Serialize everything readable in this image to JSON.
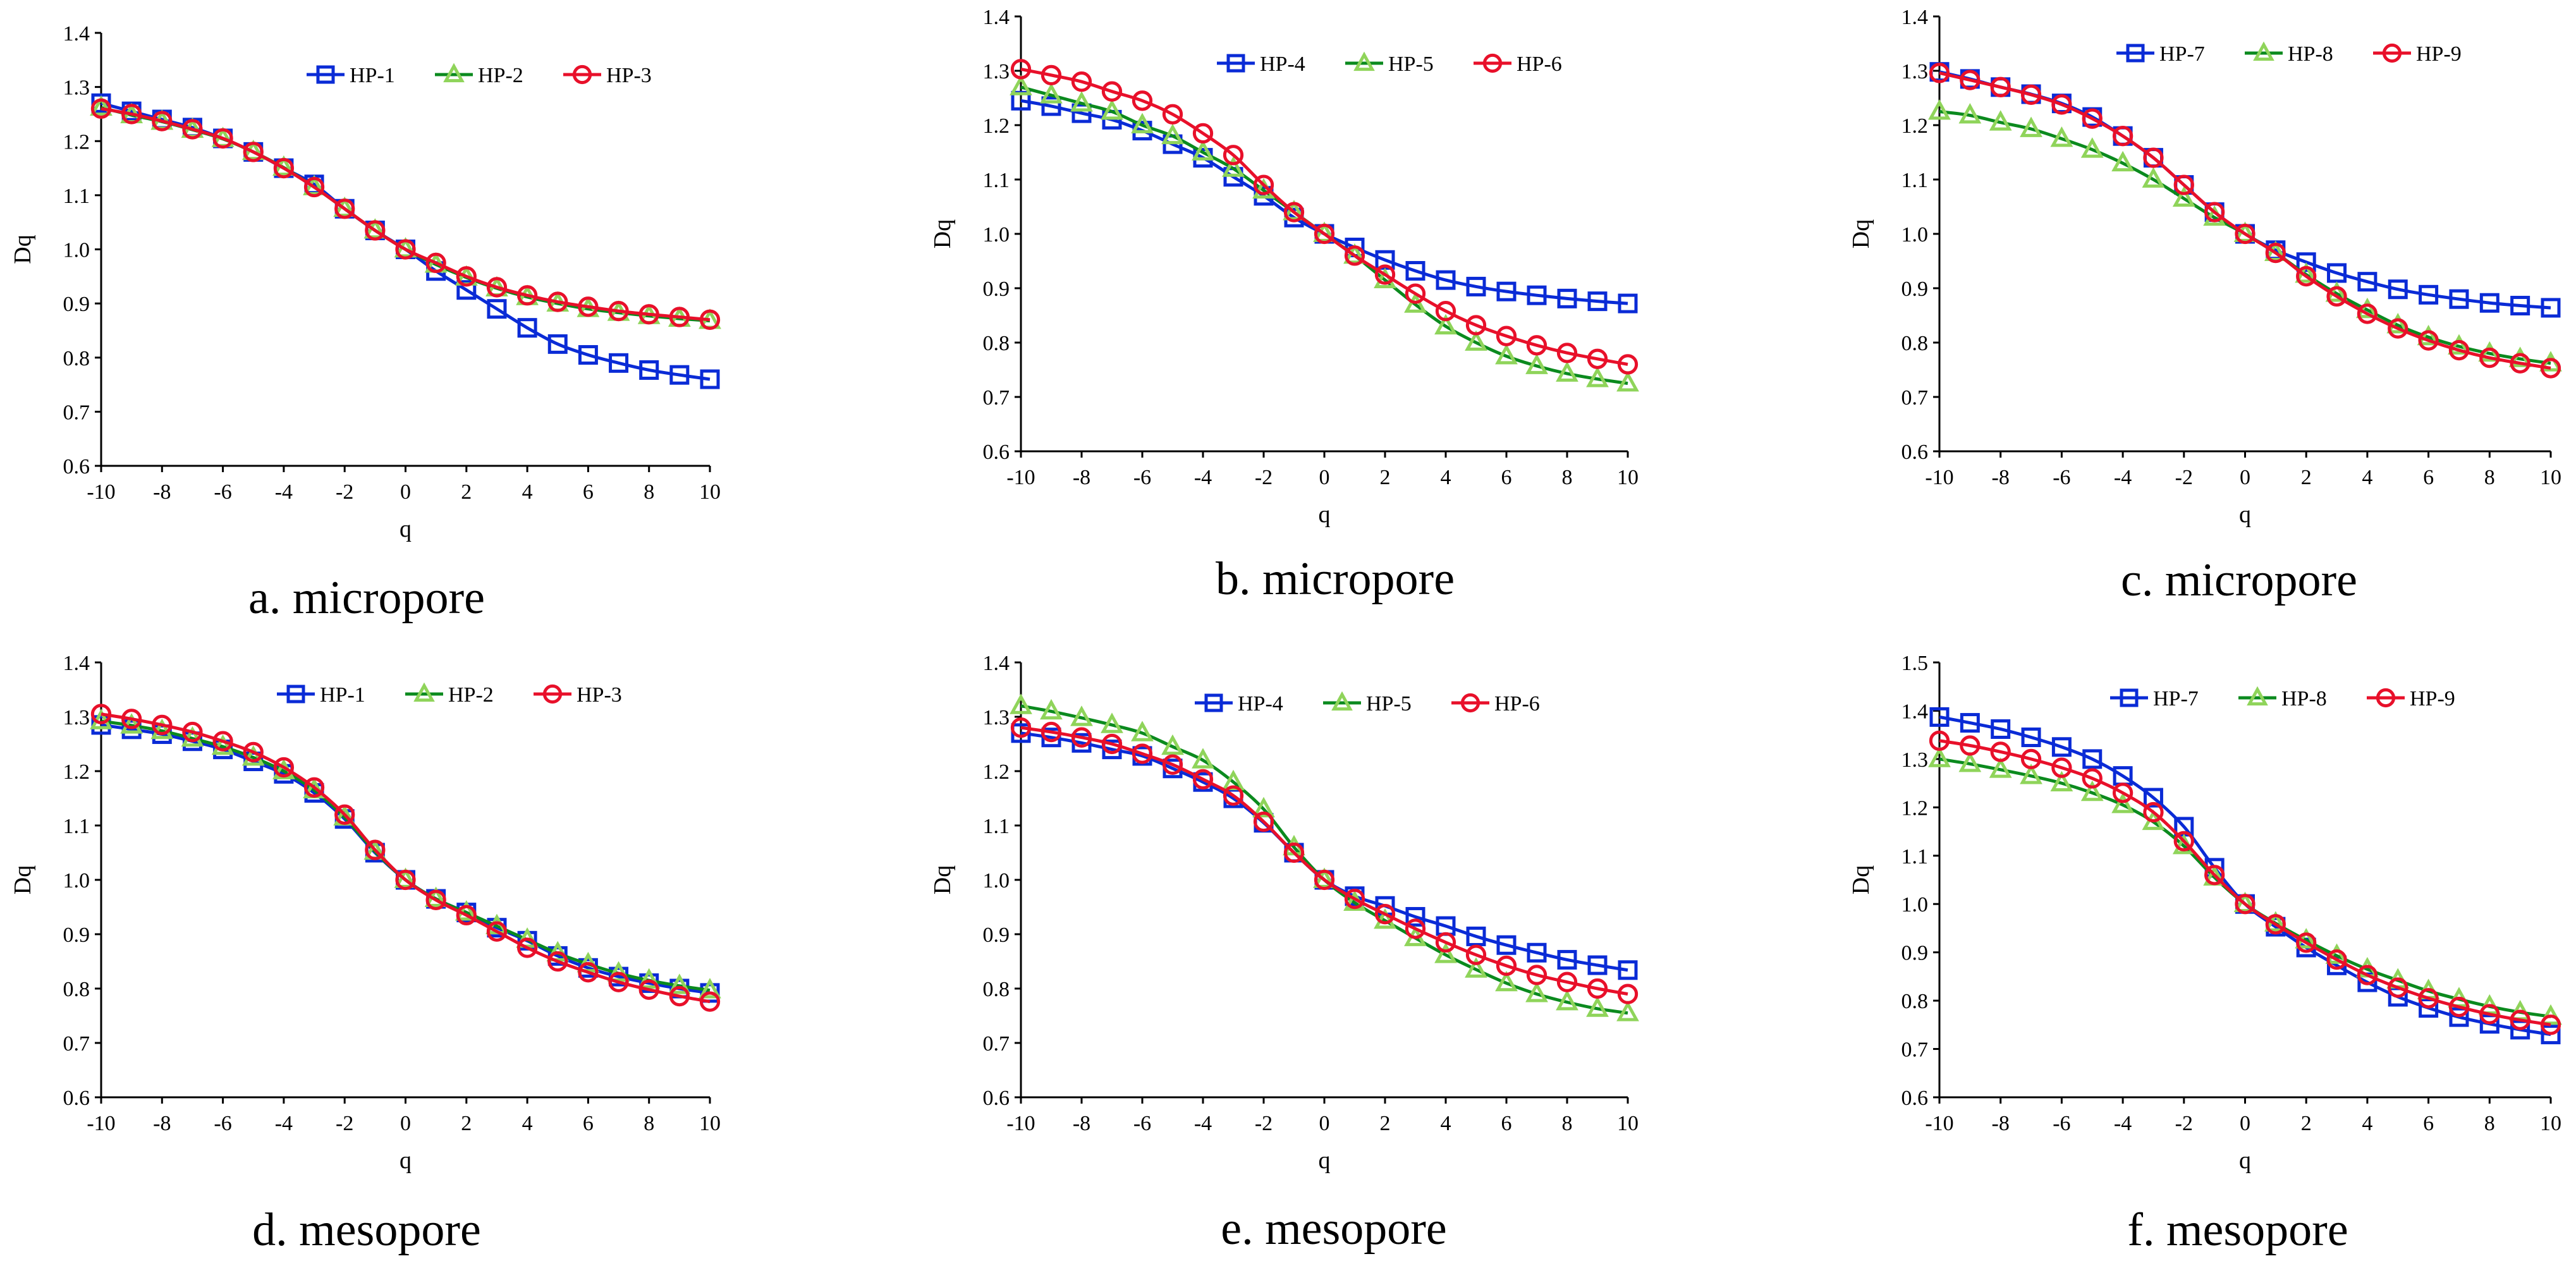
{
  "figure": {
    "series_styles": {
      "blue": {
        "color": "#0a2bd6",
        "marker": "square"
      },
      "green": {
        "color": "#0b8a1e",
        "marker_color": "#8fd45a",
        "marker": "triangle"
      },
      "red": {
        "color": "#e8102a",
        "marker_color": "#e8102a",
        "marker": "circle"
      }
    }
  },
  "chart_data": [
    {
      "type": "line",
      "caption": "a. micropore",
      "xlabel": "q",
      "ylabel": "Dq",
      "xlim": [
        -10,
        10
      ],
      "ylim": [
        0.6,
        1.4
      ],
      "xticks": [
        "-10",
        "-8",
        "-6",
        "-4",
        "-2",
        "0",
        "2",
        "4",
        "6",
        "8",
        "10"
      ],
      "yticks": [
        "0.6",
        "0.7",
        "0.8",
        "0.9",
        "1.0",
        "1.1",
        "1.2",
        "1.3",
        "1.4"
      ],
      "legend_position": "top-right",
      "x": [
        -10,
        -9,
        -8,
        -7,
        -6,
        -5,
        -4,
        -3,
        -2,
        -1,
        0,
        1,
        2,
        3,
        4,
        5,
        6,
        7,
        8,
        9,
        10
      ],
      "series": [
        {
          "name": "HP-1",
          "style": "blue",
          "values": [
            1.27,
            1.255,
            1.24,
            1.225,
            1.205,
            1.18,
            1.15,
            1.12,
            1.075,
            1.035,
            1.0,
            0.96,
            0.925,
            0.89,
            0.855,
            0.825,
            0.805,
            0.79,
            0.777,
            0.768,
            0.76
          ]
        },
        {
          "name": "HP-2",
          "style": "green",
          "values": [
            1.262,
            1.248,
            1.236,
            1.221,
            1.204,
            1.18,
            1.151,
            1.115,
            1.075,
            1.035,
            1.0,
            0.972,
            0.948,
            0.928,
            0.912,
            0.9,
            0.89,
            0.883,
            0.877,
            0.872,
            0.868
          ]
        },
        {
          "name": "HP-3",
          "style": "red",
          "values": [
            1.26,
            1.25,
            1.237,
            1.222,
            1.205,
            1.18,
            1.15,
            1.115,
            1.075,
            1.035,
            1.0,
            0.975,
            0.95,
            0.93,
            0.915,
            0.903,
            0.894,
            0.886,
            0.88,
            0.875,
            0.87
          ]
        }
      ]
    },
    {
      "type": "line",
      "caption": "b. micropore",
      "xlabel": "q",
      "ylabel": "Dq",
      "xlim": [
        -10,
        10
      ],
      "ylim": [
        0.6,
        1.4
      ],
      "xticks": [
        "-10",
        "-8",
        "-6",
        "-4",
        "-2",
        "0",
        "2",
        "4",
        "6",
        "8",
        "10"
      ],
      "yticks": [
        "0.6",
        "0.7",
        "0.8",
        "0.9",
        "1.0",
        "1.1",
        "1.2",
        "1.3",
        "1.4"
      ],
      "legend_position": "top-right",
      "x": [
        -10,
        -9,
        -8,
        -7,
        -6,
        -5,
        -4,
        -3,
        -2,
        -1,
        0,
        1,
        2,
        3,
        4,
        5,
        6,
        7,
        8,
        9,
        10
      ],
      "series": [
        {
          "name": "HP-4",
          "style": "blue",
          "values": [
            1.245,
            1.235,
            1.222,
            1.21,
            1.19,
            1.165,
            1.14,
            1.105,
            1.07,
            1.03,
            1.0,
            0.975,
            0.952,
            0.932,
            0.915,
            0.903,
            0.894,
            0.887,
            0.881,
            0.876,
            0.872
          ]
        },
        {
          "name": "HP-5",
          "style": "green",
          "values": [
            1.27,
            1.255,
            1.24,
            1.225,
            1.2,
            1.18,
            1.15,
            1.12,
            1.08,
            1.04,
            1.0,
            0.96,
            0.915,
            0.87,
            0.83,
            0.8,
            0.775,
            0.757,
            0.743,
            0.733,
            0.725
          ]
        },
        {
          "name": "HP-6",
          "style": "red",
          "values": [
            1.303,
            1.292,
            1.28,
            1.262,
            1.245,
            1.22,
            1.185,
            1.145,
            1.09,
            1.04,
            1.0,
            0.96,
            0.925,
            0.89,
            0.858,
            0.832,
            0.812,
            0.795,
            0.781,
            0.77,
            0.76
          ]
        }
      ]
    },
    {
      "type": "line",
      "caption": "c. micropore",
      "xlabel": "q",
      "ylabel": "Dq",
      "xlim": [
        -10,
        10
      ],
      "ylim": [
        0.6,
        1.4
      ],
      "xticks": [
        "-10",
        "-8",
        "-6",
        "-4",
        "-2",
        "0",
        "2",
        "4",
        "6",
        "8",
        "10"
      ],
      "yticks": [
        "0.6",
        "0.7",
        "0.8",
        "0.9",
        "1.0",
        "1.1",
        "1.2",
        "1.3",
        "1.4"
      ],
      "legend_position": "top-right",
      "x": [
        -10,
        -9,
        -8,
        -7,
        -6,
        -5,
        -4,
        -3,
        -2,
        -1,
        0,
        1,
        2,
        3,
        4,
        5,
        6,
        7,
        8,
        9,
        10
      ],
      "series": [
        {
          "name": "HP-7",
          "style": "blue",
          "values": [
            1.298,
            1.285,
            1.27,
            1.257,
            1.24,
            1.215,
            1.18,
            1.14,
            1.09,
            1.04,
            1.0,
            0.97,
            0.948,
            0.928,
            0.912,
            0.898,
            0.888,
            0.88,
            0.873,
            0.868,
            0.864
          ]
        },
        {
          "name": "HP-8",
          "style": "green",
          "values": [
            1.225,
            1.218,
            1.205,
            1.193,
            1.175,
            1.155,
            1.13,
            1.1,
            1.065,
            1.03,
            1.0,
            0.965,
            0.925,
            0.89,
            0.86,
            0.832,
            0.81,
            0.793,
            0.78,
            0.77,
            0.762
          ]
        },
        {
          "name": "HP-9",
          "style": "red",
          "values": [
            1.296,
            1.283,
            1.27,
            1.256,
            1.238,
            1.212,
            1.18,
            1.14,
            1.09,
            1.04,
            1.0,
            0.965,
            0.922,
            0.885,
            0.853,
            0.826,
            0.804,
            0.786,
            0.772,
            0.762,
            0.753
          ]
        }
      ]
    },
    {
      "type": "line",
      "caption": "d. mesopore",
      "xlabel": "q",
      "ylabel": "Dq",
      "xlim": [
        -10,
        10
      ],
      "ylim": [
        0.6,
        1.4
      ],
      "xticks": [
        "-10",
        "-8",
        "-6",
        "-4",
        "-2",
        "0",
        "2",
        "4",
        "6",
        "8",
        "10"
      ],
      "yticks": [
        "0.6",
        "0.7",
        "0.8",
        "0.9",
        "1.0",
        "1.1",
        "1.2",
        "1.3",
        "1.4"
      ],
      "legend_position": "top-right",
      "x": [
        -10,
        -9,
        -8,
        -7,
        -6,
        -5,
        -4,
        -3,
        -2,
        -1,
        0,
        1,
        2,
        3,
        4,
        5,
        6,
        7,
        8,
        9,
        10
      ],
      "series": [
        {
          "name": "HP-1",
          "style": "blue",
          "values": [
            1.285,
            1.277,
            1.268,
            1.255,
            1.24,
            1.218,
            1.195,
            1.16,
            1.112,
            1.05,
            1.0,
            0.965,
            0.94,
            0.912,
            0.888,
            0.86,
            0.838,
            0.822,
            0.81,
            0.8,
            0.792
          ]
        },
        {
          "name": "HP-2",
          "style": "green",
          "values": [
            1.292,
            1.284,
            1.274,
            1.26,
            1.245,
            1.225,
            1.2,
            1.165,
            1.115,
            1.052,
            1.0,
            0.965,
            0.94,
            0.915,
            0.89,
            0.865,
            0.845,
            0.828,
            0.815,
            0.805,
            0.797
          ]
        },
        {
          "name": "HP-3",
          "style": "red",
          "values": [
            1.305,
            1.296,
            1.285,
            1.272,
            1.255,
            1.235,
            1.207,
            1.17,
            1.12,
            1.055,
            1.0,
            0.963,
            0.935,
            0.905,
            0.875,
            0.85,
            0.83,
            0.812,
            0.798,
            0.786,
            0.776
          ]
        }
      ]
    },
    {
      "type": "line",
      "caption": "e. mesopore",
      "xlabel": "q",
      "ylabel": "Dq",
      "xlim": [
        -10,
        10
      ],
      "ylim": [
        0.6,
        1.4
      ],
      "xticks": [
        "-10",
        "-8",
        "-6",
        "-4",
        "-2",
        "0",
        "2",
        "4",
        "6",
        "8",
        "10"
      ],
      "yticks": [
        "0.6",
        "0.7",
        "0.8",
        "0.9",
        "1.0",
        "1.1",
        "1.2",
        "1.3",
        "1.4"
      ],
      "legend_position": "top-right",
      "x": [
        -10,
        -9,
        -8,
        -7,
        -6,
        -5,
        -4,
        -3,
        -2,
        -1,
        0,
        1,
        2,
        3,
        4,
        5,
        6,
        7,
        8,
        9,
        10
      ],
      "series": [
        {
          "name": "HP-4",
          "style": "blue",
          "values": [
            1.27,
            1.262,
            1.252,
            1.24,
            1.228,
            1.205,
            1.18,
            1.15,
            1.105,
            1.05,
            1.0,
            0.97,
            0.952,
            0.932,
            0.915,
            0.896,
            0.88,
            0.866,
            0.853,
            0.843,
            0.834
          ]
        },
        {
          "name": "HP-5",
          "style": "green",
          "values": [
            1.32,
            1.31,
            1.298,
            1.285,
            1.27,
            1.245,
            1.22,
            1.18,
            1.13,
            1.06,
            1.0,
            0.958,
            0.925,
            0.893,
            0.862,
            0.835,
            0.81,
            0.79,
            0.775,
            0.763,
            0.755
          ]
        },
        {
          "name": "HP-6",
          "style": "red",
          "values": [
            1.28,
            1.272,
            1.262,
            1.25,
            1.232,
            1.212,
            1.185,
            1.155,
            1.107,
            1.05,
            1.0,
            0.965,
            0.937,
            0.91,
            0.885,
            0.862,
            0.842,
            0.825,
            0.812,
            0.8,
            0.79
          ]
        }
      ]
    },
    {
      "type": "line",
      "caption": "f. mesopore",
      "xlabel": "q",
      "ylabel": "Dq",
      "xlim": [
        -10,
        10
      ],
      "ylim": [
        0.6,
        1.5
      ],
      "xticks": [
        "-10",
        "-8",
        "-6",
        "-4",
        "-2",
        "0",
        "2",
        "4",
        "6",
        "8",
        "10"
      ],
      "yticks": [
        "0.6",
        "0.7",
        "0.8",
        "0.9",
        "1.0",
        "1.1",
        "1.2",
        "1.3",
        "1.4",
        "1.5"
      ],
      "legend_position": "top-right",
      "x": [
        -10,
        -9,
        -8,
        -7,
        -6,
        -5,
        -4,
        -3,
        -2,
        -1,
        0,
        1,
        2,
        3,
        4,
        5,
        6,
        7,
        8,
        9,
        10
      ],
      "series": [
        {
          "name": "HP-7",
          "style": "blue",
          "values": [
            1.387,
            1.375,
            1.362,
            1.345,
            1.325,
            1.3,
            1.265,
            1.22,
            1.16,
            1.075,
            1.0,
            0.953,
            0.91,
            0.873,
            0.838,
            0.808,
            0.785,
            0.766,
            0.752,
            0.74,
            0.73
          ]
        },
        {
          "name": "HP-8",
          "style": "green",
          "values": [
            1.3,
            1.29,
            1.278,
            1.265,
            1.25,
            1.23,
            1.205,
            1.17,
            1.12,
            1.055,
            1.0,
            0.96,
            0.925,
            0.893,
            0.865,
            0.842,
            0.82,
            0.803,
            0.788,
            0.776,
            0.767
          ]
        },
        {
          "name": "HP-9",
          "style": "red",
          "values": [
            1.338,
            1.328,
            1.315,
            1.3,
            1.282,
            1.26,
            1.23,
            1.19,
            1.13,
            1.06,
            1.0,
            0.958,
            0.92,
            0.885,
            0.853,
            0.827,
            0.805,
            0.787,
            0.772,
            0.76,
            0.75
          ]
        }
      ]
    }
  ]
}
